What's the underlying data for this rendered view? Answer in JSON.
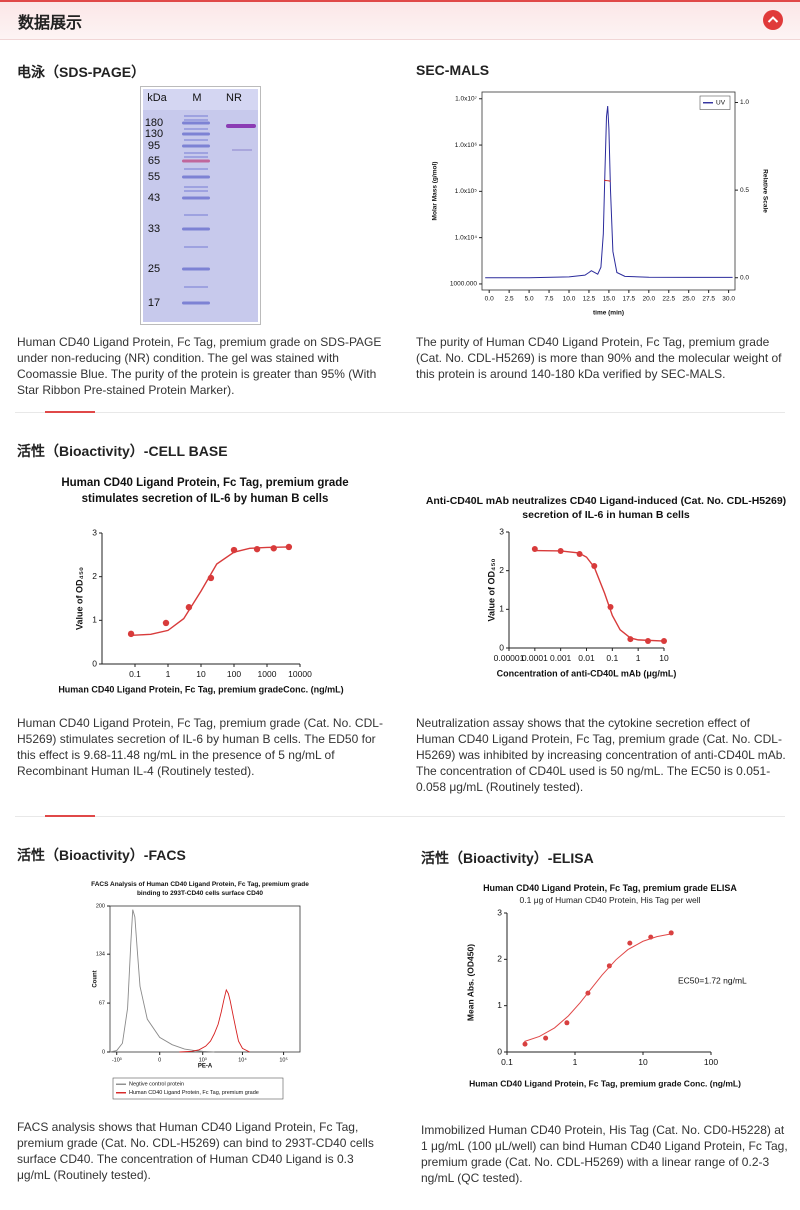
{
  "header": {
    "title": "数据展示"
  },
  "panels": [
    {
      "heading": "电泳（SDS-PAGE）",
      "gel": {
        "unit_label": "kDa",
        "lanes": [
          "M",
          "NR"
        ],
        "markers": [
          180,
          130,
          95,
          65,
          55,
          43,
          33,
          25,
          17
        ]
      },
      "caption": "Human CD40 Ligand Protein, Fc Tag, premium grade on SDS-PAGE under non-reducing (NR) condition. The gel was stained with Coomassie Blue. The purity of the protein is greater than 95% (With Star Ribbon Pre-stained Protein Marker)."
    },
    {
      "heading": "SEC-MALS",
      "chart_data": {
        "type": "line",
        "xlabel": "time (min)",
        "ylabel": "Molar Mass (g/mol)",
        "y2label": "Relative Scale",
        "xlim": [
          -0.9,
          30.8
        ],
        "ylim": [
          740,
          14000000
        ],
        "y2lim": [
          -0.07,
          1.06
        ],
        "yscale": "log",
        "xticks": [
          {
            "value": 0,
            "label": "0.0"
          },
          {
            "value": 2.5,
            "label": "2.5"
          },
          {
            "value": 5,
            "label": "5.0"
          },
          {
            "value": 7.5,
            "label": "7.5"
          },
          {
            "value": 10,
            "label": "10.0"
          },
          {
            "value": 12.5,
            "label": "12.5"
          },
          {
            "value": 15,
            "label": "15.0"
          },
          {
            "value": 17.5,
            "label": "17.5"
          },
          {
            "value": 20,
            "label": "20.0"
          },
          {
            "value": 22.5,
            "label": "22.5"
          },
          {
            "value": 25,
            "label": "25.0"
          },
          {
            "value": 27.5,
            "label": "27.5"
          },
          {
            "value": 30,
            "label": "30.0"
          }
        ],
        "yticks": [
          {
            "value": 1000,
            "label": "1000.000"
          },
          {
            "value": 10000,
            "label": "1.0x10⁴"
          },
          {
            "value": 100000,
            "label": "1.0x10⁵"
          },
          {
            "value": 1000000,
            "label": "1.0x10⁶"
          },
          {
            "value": 10000000,
            "label": "1.0x10⁷"
          }
        ],
        "y2ticks": [
          {
            "value": 0,
            "label": "0.0"
          },
          {
            "value": 0.5,
            "label": "0.5"
          },
          {
            "value": 1,
            "label": "1.0"
          }
        ],
        "series": [
          {
            "name": "UV",
            "color": "#2b2b9c",
            "axis": "y2",
            "x": [
              -0.5,
              0,
              5,
              10,
              12,
              12.5,
              12.8,
              13.2,
              13.6,
              14,
              14.3,
              14.5,
              14.7,
              14.85,
              15,
              15.2,
              15.5,
              16,
              17,
              20,
              25,
              30,
              30.5
            ],
            "values": [
              0.0,
              0.0,
              0.0,
              0.005,
              0.015,
              0.03,
              0.04,
              0.03,
              0.02,
              0.06,
              0.25,
              0.6,
              0.92,
              0.98,
              0.85,
              0.5,
              0.15,
              0.03,
              0.008,
              0.003,
              0.002,
              0.002,
              0.002
            ]
          },
          {
            "color": "#d02020",
            "x": [
              14.4,
              14.6,
              14.8,
              15.0,
              15.2
            ],
            "values": [
              175000,
              172000,
              170000,
              168000,
              165000
            ]
          }
        ]
      },
      "caption": "The purity of Human CD40 Ligand Protein, Fc Tag, premium grade (Cat. No. CDL-H5269) is more than 90% and the molecular weight of this protein is around 140-180 kDa verified by SEC-MALS."
    },
    {
      "heading": "活性（Bioactivity）-CELL BASE",
      "chart_data": {
        "type": "scatter",
        "title": "Human CD40 Ligand Protein, Fc Tag, premium grade stimulates secretion of IL-6 by human B cells",
        "xlabel": "Human CD40 Ligand Protein, Fc Tag, premium gradeConc. (ng/mL)",
        "ylabel": "Value of OD₄₅₀",
        "xscale": "log",
        "xlim": [
          0.01,
          10000
        ],
        "ylim": [
          0,
          3
        ],
        "xticks": [
          0.1,
          1,
          10,
          100,
          1000,
          10000
        ],
        "yticks": [
          0,
          1,
          2,
          3
        ],
        "series": [
          {
            "color": "#d83b3b",
            "x": [
              0.076,
              0.87,
              4.3,
              20,
              100,
              500,
              1600,
              4600
            ],
            "values": [
              0.69,
              0.94,
              1.3,
              1.97,
              2.61,
              2.63,
              2.65,
              2.68
            ]
          },
          {
            "type": "line",
            "color": "#d83b3b",
            "x": [
              0.08,
              0.3,
              1,
              3,
              10,
              30,
              100,
              300,
              1000,
              5000
            ],
            "values": [
              0.656,
              0.68,
              0.77,
              1.04,
              1.67,
              2.29,
              2.56,
              2.65,
              2.67,
              2.68
            ]
          }
        ]
      },
      "caption": "Human CD40 Ligand Protein, Fc Tag, premium grade (Cat. No. CDL-H5269) stimulates secretion of IL-6 by human B cells. The ED50 for this effect is 9.68-11.48 ng/mL in the presence of 5 ng/mL of Recombinant Human IL-4 (Routinely tested)."
    },
    {
      "chart_data": {
        "type": "scatter",
        "title": "Anti-CD40L mAb neutralizes CD40 Ligand-induced (Cat. No. CDL-H5269) secretion of IL-6 in human B cells",
        "xlabel": "Concentration of anti-CD40L mAb (μg/mL)",
        "ylabel": "Value of OD₄₅₀",
        "xscale": "log",
        "xlim": [
          1e-05,
          10
        ],
        "ylim": [
          0,
          3
        ],
        "xticks": [
          1e-05,
          0.0001,
          0.001,
          0.01,
          0.1,
          1,
          10
        ],
        "yticks": [
          0,
          1,
          2,
          3
        ],
        "series": [
          {
            "color": "#d83b3b",
            "x": [
              0.0001,
              0.001,
              0.0054,
              0.02,
              0.085,
              0.5,
              2.4,
              10
            ],
            "values": [
              2.56,
              2.51,
              2.43,
              2.12,
              1.06,
              0.23,
              0.18,
              0.18
            ]
          },
          {
            "type": "line",
            "color": "#d83b3b",
            "x": [
              0.0001,
              0.001,
              0.005,
              0.01,
              0.02,
              0.05,
              0.1,
              0.2,
              0.5,
              1,
              10
            ],
            "values": [
              2.52,
              2.51,
              2.46,
              2.35,
              2.09,
              1.42,
              0.84,
              0.47,
              0.26,
              0.21,
              0.18
            ]
          }
        ]
      },
      "caption": "Neutralization assay shows that the cytokine secretion effect of Human CD40 Ligand Protein, Fc Tag, premium grade (Cat. No. CDL-H5269) was inhibited by increasing concentration of anti-CD40L mAb. The concentration of CD40L used is 50 ng/mL. The EC50 is 0.051-0.058 μg/mL (Routinely tested)."
    },
    {
      "heading": "活性（Bioactivity）-FACS",
      "chart_data": {
        "type": "line",
        "title": "FACS Analysis of Human CD40 Ligand Protein, Fc Tag, premium grade binding to 293T-CD40 cells surface CD40",
        "xlabel": "PE-A",
        "ylabel": "Count",
        "xscale": "biexponential",
        "xlim": [
          -1500,
          250000
        ],
        "ylim": [
          0,
          200
        ],
        "xticks": [
          {
            "value": -1000,
            "label": "-10³"
          },
          {
            "value": 0,
            "label": "0"
          },
          {
            "value": 1000,
            "label": "10³"
          },
          {
            "value": 10000,
            "label": "10⁴"
          },
          {
            "value": 100000,
            "label": "10⁵"
          }
        ],
        "yticks": [
          0,
          67,
          134,
          200
        ],
        "series": [
          {
            "name": "Negtive control protein",
            "color": "#8a8a8a",
            "x": [
              -1500,
              -1000,
              -700,
              -500,
              -400,
              -350,
              -300,
              -250,
              -200,
              -100,
              0,
              100,
              300,
              600,
              1000,
              2000
            ],
            "values": [
              0,
              2,
              12,
              60,
              150,
              195,
              185,
              140,
              90,
              45,
              20,
              10,
              4,
              2,
              1,
              0
            ]
          },
          {
            "name": "Human CD40 Ligand Protein, Fc Tag, premium grade",
            "color": "#d62020",
            "x": [
              200,
              500,
              800,
              1200,
              1600,
              2000,
              2500,
              3000,
              3500,
              4000,
              4500,
              5000,
              6000,
              7000,
              8000,
              10000,
              15000
            ],
            "values": [
              0,
              1,
              3,
              8,
              15,
              25,
              38,
              55,
              72,
              85,
              80,
              70,
              48,
              30,
              15,
              5,
              0
            ]
          }
        ]
      },
      "caption": "FACS analysis shows that Human CD40 Ligand Protein, Fc Tag, premium grade (Cat. No. CDL-H5269) can bind to 293T-CD40 cells surface CD40. The concentration of Human CD40 Ligand is 0.3 μg/mL (Routinely tested)."
    },
    {
      "heading": "活性（Bioactivity）-ELISA",
      "chart_data": {
        "type": "scatter",
        "title": "Human CD40 Ligand Protein, Fc Tag, premium grade ELISA",
        "subtitle": "0.1 μg of Human CD40 Protein, His Tag per well",
        "xlabel": "Human CD40 Ligand Protein, Fc Tag, premium grade Conc. (ng/mL)",
        "ylabel": "Mean Abs. (OD450)",
        "annotation": "EC50=1.72 ng/mL",
        "xscale": "log",
        "xlim": [
          0.1,
          100
        ],
        "ylim": [
          0,
          3
        ],
        "xticks": [
          0.1,
          1,
          10,
          100
        ],
        "yticks": [
          0,
          1,
          2,
          3
        ],
        "series": [
          {
            "color": "#d84040",
            "x": [
              0.184,
              0.37,
              0.76,
              1.55,
              3.2,
              6.4,
              13,
              26
            ],
            "values": [
              0.17,
              0.3,
              0.63,
              1.27,
              1.86,
              2.35,
              2.48,
              2.57
            ]
          },
          {
            "type": "line",
            "color": "#e04848",
            "x": [
              0.18,
              0.3,
              0.5,
              0.8,
              1.2,
              1.72,
              2.5,
              4,
              6,
              10,
              16,
              26
            ],
            "values": [
              0.227,
              0.336,
              0.52,
              0.78,
              1.07,
              1.36,
              1.66,
              1.99,
              2.21,
              2.39,
              2.49,
              2.55
            ]
          }
        ]
      },
      "caption": "Immobilized Human CD40 Protein, His Tag (Cat. No. CD0-H5228) at 1 μg/mL (100 μL/well) can bind Human CD40 Ligand Protein, Fc Tag, premium grade (Cat. No. CDL-H5269) with a linear range of 0.2-3 ng/mL (QC tested)."
    }
  ]
}
